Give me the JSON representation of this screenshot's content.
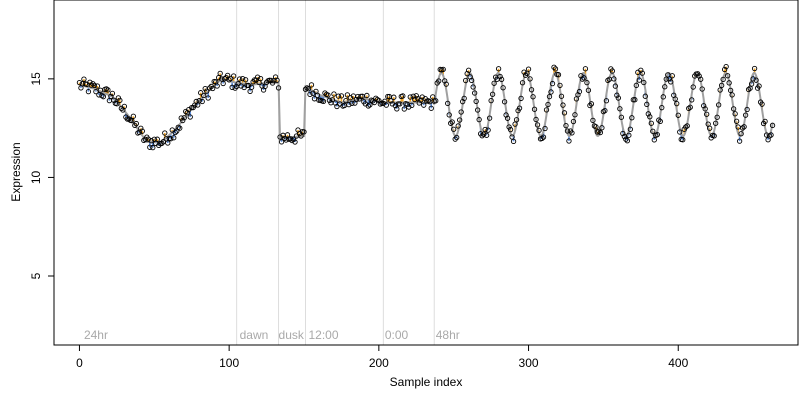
{
  "chart_data": {
    "type": "scatter",
    "title": "",
    "xlabel": "Sample index",
    "ylabel": "Expression",
    "xlim": [
      -17,
      480
    ],
    "ylim": [
      1.5,
      19
    ],
    "x_ticks": [
      0,
      100,
      200,
      300,
      400
    ],
    "y_ticks": [
      5,
      10,
      15
    ],
    "grid": false,
    "vlines": [
      105,
      133,
      151,
      203,
      237
    ],
    "annotations": [
      {
        "text": "24hr",
        "x": 3
      },
      {
        "text": "dawn",
        "x": 107
      },
      {
        "text": "dusk",
        "x": 133
      },
      {
        "text": "12:00",
        "x": 153
      },
      {
        "text": "0:00",
        "x": 204
      },
      {
        "text": "48hr",
        "x": 238
      }
    ],
    "annotation_y": 2,
    "colors": {
      "fitted_line": "#a0a0a0",
      "points": "#000000",
      "residual_above": "#f5a623",
      "residual_below": "#5b8bd9",
      "annotation": "#a9a9a9",
      "vline": "#dddddd"
    },
    "knots": [
      [
        0,
        14.7
      ],
      [
        10,
        14.5
      ],
      [
        22,
        14.1
      ],
      [
        32,
        13.2
      ],
      [
        45,
        11.8
      ],
      [
        55,
        11.8
      ],
      [
        65,
        12.5
      ],
      [
        75,
        13.5
      ],
      [
        85,
        14.3
      ],
      [
        95,
        15.0
      ],
      [
        105,
        14.8
      ],
      [
        115,
        14.7
      ],
      [
        125,
        14.8
      ],
      [
        133,
        14.8
      ],
      [
        134,
        12.0
      ],
      [
        150,
        12.1
      ],
      [
        151,
        14.6
      ],
      [
        160,
        14.2
      ],
      [
        175,
        13.8
      ],
      [
        190,
        14.0
      ],
      [
        203,
        13.8
      ],
      [
        237,
        13.8
      ]
    ],
    "wave": {
      "start": 237,
      "end": 463,
      "center": 13.7,
      "amplitude": 1.6,
      "period": 19
    },
    "series": [
      {
        "type": "scatter",
        "x_start": 0,
        "x_end": 463,
        "noise": 0.35
      }
    ]
  }
}
